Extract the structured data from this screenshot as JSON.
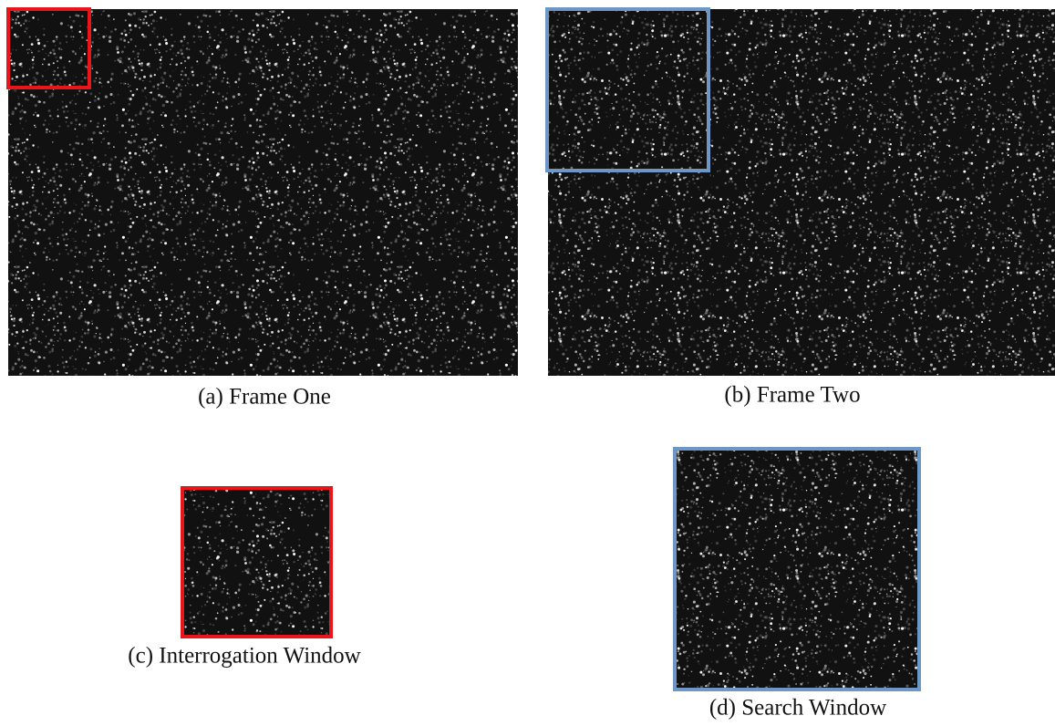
{
  "panels": [
    {
      "caption": "(a) Frame One"
    },
    {
      "caption": "(b) Frame Two"
    },
    {
      "caption": "(c) Interrogation Window"
    },
    {
      "caption": "(d) Search Window"
    }
  ]
}
